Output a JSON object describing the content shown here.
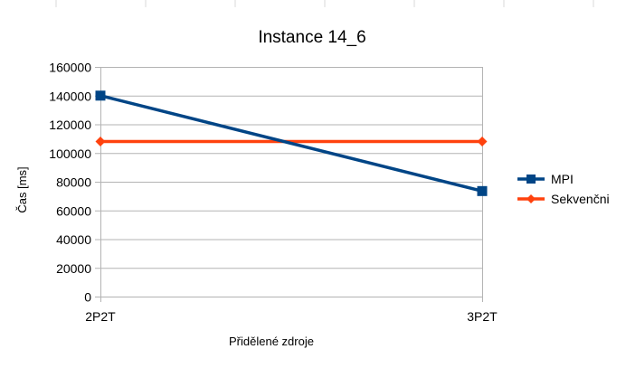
{
  "chart_data": {
    "type": "line",
    "title": "Instance 14_6",
    "xlabel": "Přidělené zdroje",
    "ylabel": "Čas [ms]",
    "categories": [
      "2P2T",
      "3P2T"
    ],
    "ylim": [
      0,
      160000
    ],
    "yticks": [
      0,
      20000,
      40000,
      60000,
      80000,
      100000,
      120000,
      140000,
      160000
    ],
    "grid": true,
    "legend_position": "right",
    "series": [
      {
        "name": "MPI",
        "values": [
          140000,
          73500
        ],
        "color": "#004586",
        "marker": "square"
      },
      {
        "name": "Sekvenčni",
        "values": [
          108000,
          108000
        ],
        "color": "#ff420e",
        "marker": "diamond"
      }
    ]
  }
}
